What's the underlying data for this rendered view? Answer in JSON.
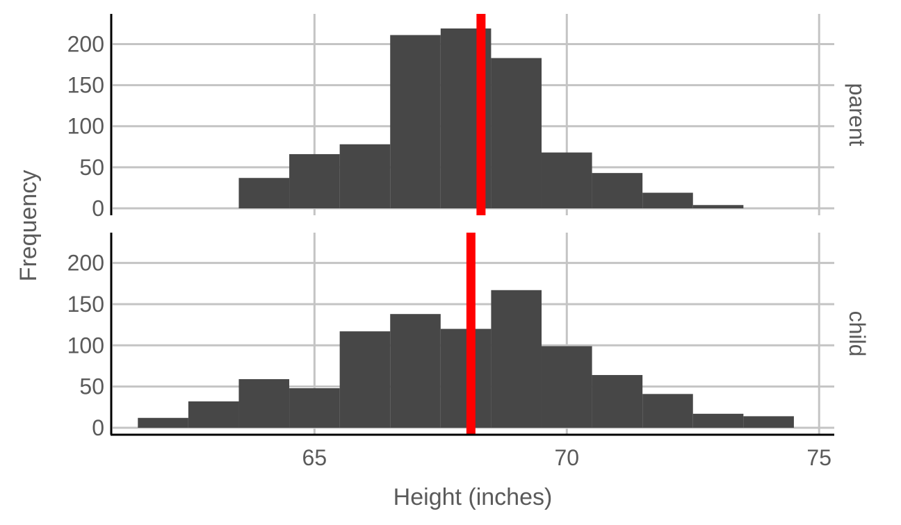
{
  "chart_data": {
    "type": "bar",
    "subtype": "faceted-histogram",
    "xlabel": "Height (inches)",
    "ylabel": "Frequency",
    "xlim": [
      61,
      75.3
    ],
    "ylim": [
      0,
      230
    ],
    "xticks": [
      65,
      70,
      75
    ],
    "yticks": [
      0,
      50,
      100,
      150,
      200
    ],
    "bin_width": 1,
    "grid": true,
    "mean_line_color": "#ff0000",
    "bar_color": "#474747",
    "facets": [
      {
        "strip_label": "parent",
        "mean": 68.3,
        "bins": [
          {
            "x0": 63.5,
            "x1": 64.5,
            "count": 37
          },
          {
            "x0": 64.5,
            "x1": 65.5,
            "count": 66
          },
          {
            "x0": 65.5,
            "x1": 66.5,
            "count": 78
          },
          {
            "x0": 66.5,
            "x1": 67.5,
            "count": 211
          },
          {
            "x0": 67.5,
            "x1": 68.5,
            "count": 219
          },
          {
            "x0": 68.5,
            "x1": 69.5,
            "count": 183
          },
          {
            "x0": 69.5,
            "x1": 70.5,
            "count": 68
          },
          {
            "x0": 70.5,
            "x1": 71.5,
            "count": 43
          },
          {
            "x0": 71.5,
            "x1": 72.5,
            "count": 19
          },
          {
            "x0": 72.5,
            "x1": 73.5,
            "count": 4
          }
        ]
      },
      {
        "strip_label": "child",
        "mean": 68.1,
        "bins": [
          {
            "x0": 61.5,
            "x1": 62.5,
            "count": 12
          },
          {
            "x0": 62.5,
            "x1": 63.5,
            "count": 32
          },
          {
            "x0": 63.5,
            "x1": 64.5,
            "count": 59
          },
          {
            "x0": 64.5,
            "x1": 65.5,
            "count": 48
          },
          {
            "x0": 65.5,
            "x1": 66.5,
            "count": 117
          },
          {
            "x0": 66.5,
            "x1": 67.5,
            "count": 138
          },
          {
            "x0": 67.5,
            "x1": 68.5,
            "count": 120
          },
          {
            "x0": 68.5,
            "x1": 69.5,
            "count": 167
          },
          {
            "x0": 69.5,
            "x1": 70.5,
            "count": 99
          },
          {
            "x0": 70.5,
            "x1": 71.5,
            "count": 64
          },
          {
            "x0": 71.5,
            "x1": 72.5,
            "count": 41
          },
          {
            "x0": 72.5,
            "x1": 73.5,
            "count": 17
          },
          {
            "x0": 73.5,
            "x1": 74.5,
            "count": 14
          }
        ]
      }
    ]
  }
}
